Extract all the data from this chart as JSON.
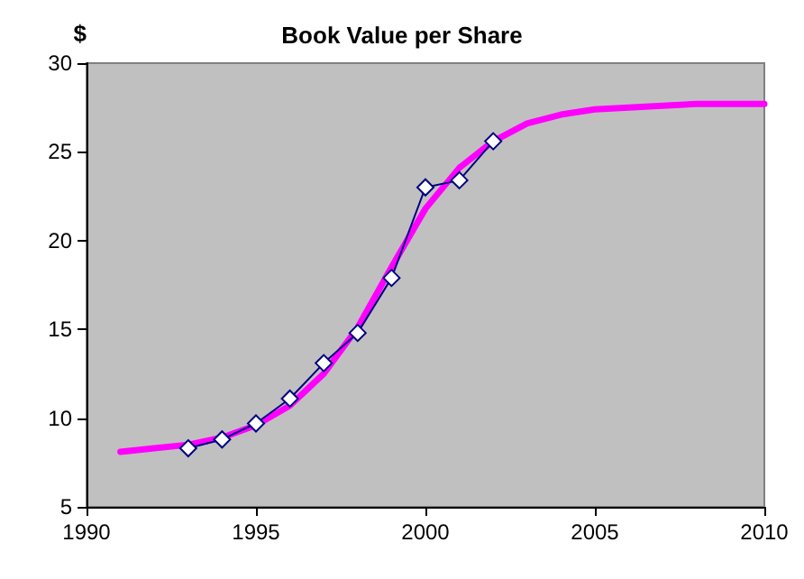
{
  "chart_data": {
    "type": "line",
    "title": "Book Value per Share",
    "ylabel": "$",
    "xlim": [
      1990,
      2010
    ],
    "xticks": [
      1990,
      1995,
      2000,
      2005,
      2010
    ],
    "ylim": [
      5,
      30
    ],
    "yticks": [
      5,
      10,
      15,
      20,
      25,
      30
    ],
    "grid": false,
    "series": [
      {
        "color": "#ff00ff",
        "marker": "none",
        "x": [
          1991,
          1992,
          1993,
          1994,
          1995,
          1996,
          1997,
          1998,
          1999,
          2000,
          2001,
          2002,
          2003,
          2004,
          2005,
          2006,
          2007,
          2008,
          2010
        ],
        "values": [
          8.1,
          8.3,
          8.5,
          8.9,
          9.6,
          10.7,
          12.5,
          15.1,
          18.5,
          21.8,
          24.1,
          25.6,
          26.6,
          27.1,
          27.4,
          27.5,
          27.6,
          27.7,
          27.7
        ]
      },
      {
        "color": "#000080",
        "marker": "diamond",
        "x": [
          1993,
          1994,
          1995,
          1996,
          1997,
          1998,
          1999,
          2000,
          2001,
          2002
        ],
        "values": [
          8.3,
          8.8,
          9.7,
          11.1,
          13.1,
          14.8,
          17.9,
          23.0,
          23.4,
          25.6
        ]
      }
    ]
  }
}
